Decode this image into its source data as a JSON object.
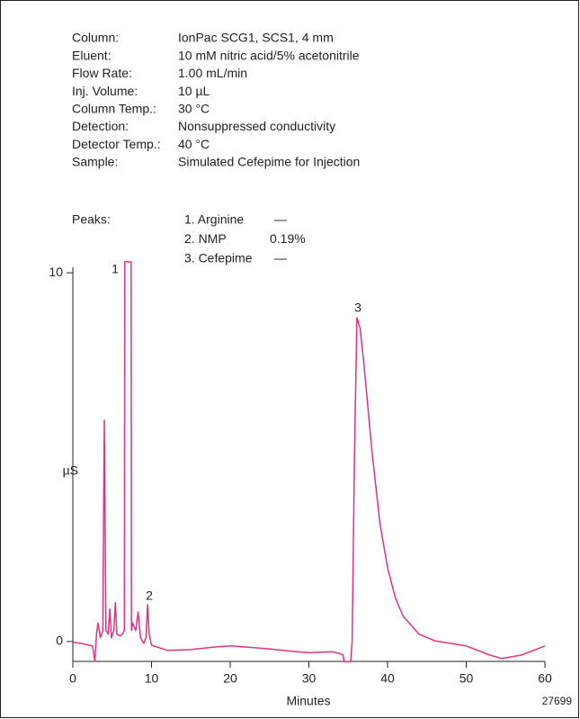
{
  "chart_data": {
    "type": "line",
    "info": [
      {
        "label": "Column:",
        "value": "IonPac SCG1, SCS1, 4 mm"
      },
      {
        "label": "Eluent:",
        "value": "10 mM nitric acid/5% acetonitrile"
      },
      {
        "label": "Flow Rate:",
        "value": "1.00 mL/min"
      },
      {
        "label": "Inj. Volume:",
        "value": "10 µL"
      },
      {
        "label": "Column Temp.:",
        "value": "30 °C"
      },
      {
        "label": "Detection:",
        "value": "Nonsuppressed conductivity"
      },
      {
        "label": "Detector Temp.:",
        "value": "40 °C"
      },
      {
        "label": "Sample:",
        "value": "Simulated Cefepime for Injection"
      }
    ],
    "peaks_label": "Peaks:",
    "peaks": [
      {
        "name": "1. Arginine",
        "amount": "—"
      },
      {
        "name": "2. NMP",
        "amount": "0.19%"
      },
      {
        "name": "3. Cefepime",
        "amount": "—"
      }
    ],
    "peak_labels": [
      "1",
      "2",
      "3"
    ],
    "xlabel": "Minutes",
    "ylabel": "µS",
    "figure_id": "27699",
    "color": "#e0337f",
    "x": [
      0,
      1,
      2.5,
      2.8,
      3.0,
      3.2,
      3.5,
      3.8,
      4.0,
      4.2,
      4.5,
      4.7,
      4.9,
      5.2,
      5.4,
      5.6,
      6.0,
      6.3,
      6.55,
      6.6,
      7.4,
      7.45,
      7.6,
      8.0,
      8.3,
      8.6,
      9.0,
      9.3,
      9.5,
      9.7,
      10.0,
      12,
      15,
      18,
      20,
      22,
      25,
      28,
      30,
      33,
      34.3,
      34.5,
      35.3,
      35.5,
      35.8,
      36.1,
      36.5,
      37,
      38,
      39,
      40,
      41,
      42,
      44,
      46,
      50,
      53,
      54.5,
      57,
      60
    ],
    "values": [
      -0.02,
      -0.05,
      -0.12,
      -0.54,
      0.2,
      0.5,
      0.1,
      0.3,
      6.0,
      0.3,
      0.2,
      0.88,
      0.1,
      0.3,
      1.05,
      0.2,
      0.15,
      0.2,
      0.3,
      10.3,
      10.3,
      0.3,
      0.5,
      0.3,
      0.8,
      0.1,
      -0.05,
      0.1,
      1.0,
      0.2,
      -0.1,
      -0.24,
      -0.22,
      -0.15,
      -0.12,
      -0.15,
      -0.2,
      -0.27,
      -0.3,
      -0.28,
      -0.35,
      -0.55,
      -0.55,
      0.0,
      5.0,
      8.78,
      8.5,
      7.5,
      5.2,
      3.24,
      2.0,
      1.17,
      0.68,
      0.2,
      0.02,
      -0.12,
      -0.37,
      -0.46,
      -0.37,
      -0.12
    ],
    "xlim": [
      0,
      60
    ],
    "ylim": [
      -0.54,
      10.15
    ],
    "xticks": [
      0,
      10,
      20,
      30,
      40,
      50,
      60
    ],
    "yticks": [
      0,
      10
    ]
  }
}
